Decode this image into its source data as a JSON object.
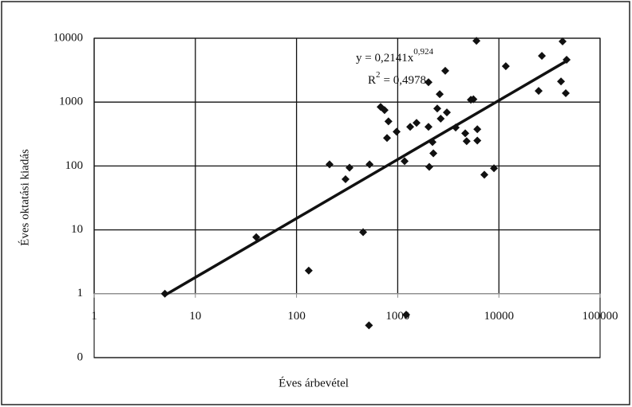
{
  "chart_data": {
    "type": "scatter",
    "x_label": "Éves árbevétel",
    "y_label": "Éves oktatási kiadás",
    "log_x": true,
    "log_y": true,
    "grid": true,
    "color": "#111111",
    "x": [
      5,
      40,
      132,
      212,
      305,
      334,
      455,
      527,
      520,
      678,
      741,
      784,
      810,
      975,
      1170,
      1212,
      1328,
      1535,
      2015,
      2015,
      2050,
      2207,
      2250,
      2460,
      2600,
      2660,
      2950,
      3060,
      3740,
      4650,
      4800,
      5280,
      5600,
      6000,
      6120,
      6120,
      7180,
      8940,
      11700,
      24700,
      26600,
      41100,
      42600,
      46700,
      45800
    ],
    "values": [
      1,
      7.7,
      2.3,
      106,
      62,
      94,
      9.2,
      106,
      0.32,
      840,
      750,
      274,
      500,
      344,
      119,
      0.47,
      410,
      473,
      410,
      2050,
      97,
      237,
      158,
      794,
      1333,
      550,
      3090,
      690,
      400,
      325,
      245,
      1090,
      1110,
      9100,
      376,
      250,
      73,
      92,
      3650,
      1500,
      5300,
      2110,
      8900,
      4600,
      1380
    ],
    "trendline": {
      "x": [
        5,
        47000
      ],
      "values": [
        0.95,
        4436
      ]
    },
    "annotation": {
      "equation": "y = 0,2141x",
      "equation_exponent": "0,924",
      "r_squared_base": "R",
      "r_squared_exponent": "2",
      "r_squared_value": "= 0,4978"
    },
    "xlim": [
      1,
      100000
    ],
    "xticks": [
      1,
      10,
      100,
      1000,
      10000,
      100000
    ],
    "ylim": [
      0.1,
      10000
    ],
    "yticks": [
      {
        "value": 0.1,
        "label": "0"
      },
      1,
      10,
      100,
      1000,
      10000
    ]
  }
}
